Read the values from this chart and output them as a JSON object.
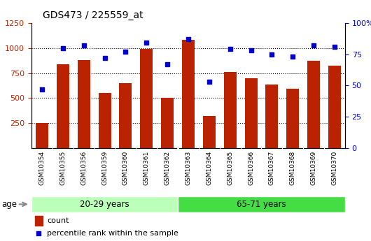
{
  "title": "GDS473 / 225559_at",
  "categories": [
    "GSM10354",
    "GSM10355",
    "GSM10356",
    "GSM10359",
    "GSM10360",
    "GSM10361",
    "GSM10362",
    "GSM10363",
    "GSM10364",
    "GSM10365",
    "GSM10366",
    "GSM10367",
    "GSM10368",
    "GSM10369",
    "GSM10370"
  ],
  "counts": [
    255,
    840,
    880,
    550,
    650,
    990,
    505,
    1080,
    320,
    760,
    700,
    635,
    590,
    870,
    820
  ],
  "percentiles": [
    47,
    80,
    82,
    72,
    77,
    84,
    67,
    87,
    53,
    79,
    78,
    75,
    73,
    82,
    81
  ],
  "group1_label": "20-29 years",
  "group2_label": "65-71 years",
  "group1_count": 7,
  "group2_count": 8,
  "bar_color": "#bb2200",
  "dot_color": "#0000cc",
  "group1_bg": "#bbffbb",
  "group2_bg": "#44dd44",
  "xtick_bg": "#cccccc",
  "ylim_left": [
    0,
    1250
  ],
  "ylim_right": [
    0,
    100
  ],
  "yticks_left": [
    250,
    500,
    750,
    1000,
    1250
  ],
  "yticks_right": [
    0,
    25,
    50,
    75,
    100
  ],
  "grid_values": [
    250,
    500,
    750,
    1000
  ],
  "legend_count_label": "count",
  "legend_percentile_label": "percentile rank within the sample",
  "age_label": "age",
  "fig_bg": "#ffffff"
}
